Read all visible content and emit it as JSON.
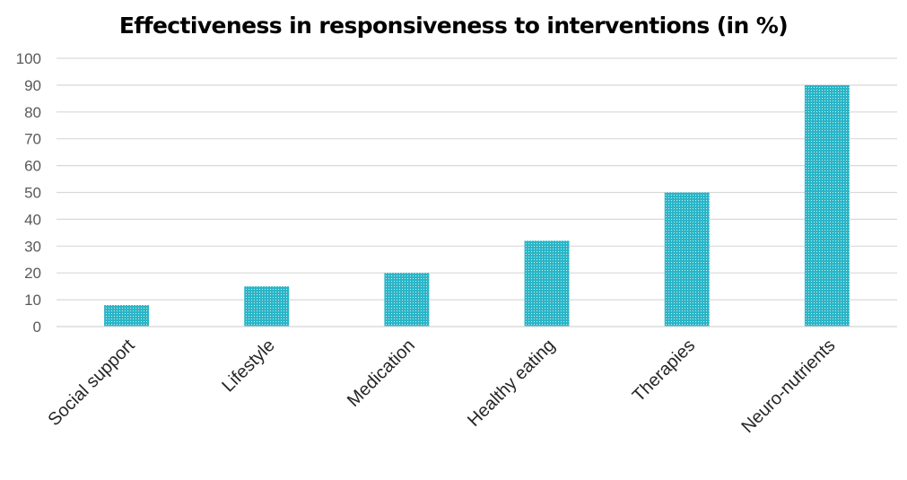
{
  "chart_data": {
    "type": "bar",
    "title": "Effectiveness in responsiveness to interventions (in %)",
    "xlabel": "",
    "ylabel": "",
    "categories": [
      "Social support",
      "Lifestyle",
      "Medication",
      "Healthy eating",
      "Therapies",
      "Neuro-nutrients"
    ],
    "values": [
      8,
      15,
      20,
      32,
      50,
      90
    ],
    "ylim": [
      0,
      100
    ],
    "yticks": [
      0,
      10,
      20,
      30,
      40,
      50,
      60,
      70,
      80,
      90,
      100
    ],
    "grid": true,
    "legend": "none",
    "colors": {
      "bar": "#2ab5c7",
      "bar_pattern": "#ffffff",
      "grid": "#d9d9d9",
      "tick_text": "#595959",
      "category_text": "#262626"
    }
  }
}
